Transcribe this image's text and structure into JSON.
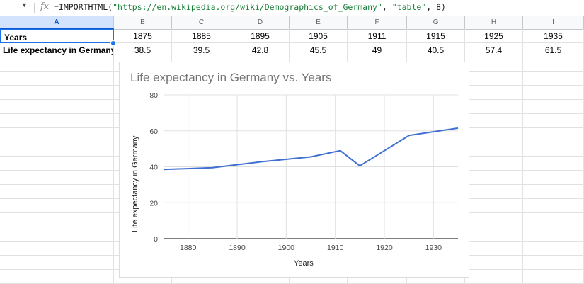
{
  "formula_bar": {
    "fx_symbol": "fx",
    "func": "=IMPORTHTML(",
    "url": "\"https://en.wikipedia.org/wiki/Demographics_of_Germany\"",
    "sep1": ", ",
    "type": "\"table\"",
    "sep2": ", ",
    "index": "8",
    "close": ")"
  },
  "columns": [
    "A",
    "B",
    "C",
    "D",
    "E",
    "F",
    "G",
    "H",
    "I"
  ],
  "rows": [
    {
      "label": "Years",
      "values": [
        "1875",
        "1885",
        "1895",
        "1905",
        "1911",
        "1915",
        "1925",
        "1935"
      ]
    },
    {
      "label": "Life expectancy in Germany",
      "values": [
        "38.5",
        "39.5",
        "42.8",
        "45.5",
        "49",
        "40.5",
        "57.4",
        "61.5"
      ]
    }
  ],
  "chart_data": {
    "type": "line",
    "title": "Life expectancy in Germany vs. Years",
    "xlabel": "Years",
    "ylabel": "Life expectancy in Germany",
    "x": [
      1875,
      1885,
      1895,
      1905,
      1911,
      1915,
      1925,
      1935
    ],
    "series": [
      {
        "name": "Life expectancy in Germany",
        "values": [
          38.5,
          39.5,
          42.8,
          45.5,
          49,
          40.5,
          57.4,
          61.5
        ]
      }
    ],
    "xlim": [
      1875,
      1935
    ],
    "ylim": [
      0,
      80
    ],
    "x_ticks": [
      1880,
      1890,
      1900,
      1910,
      1920,
      1930
    ],
    "y_ticks": [
      0,
      20,
      40,
      60,
      80
    ],
    "line_color": "#3f6fd1"
  }
}
